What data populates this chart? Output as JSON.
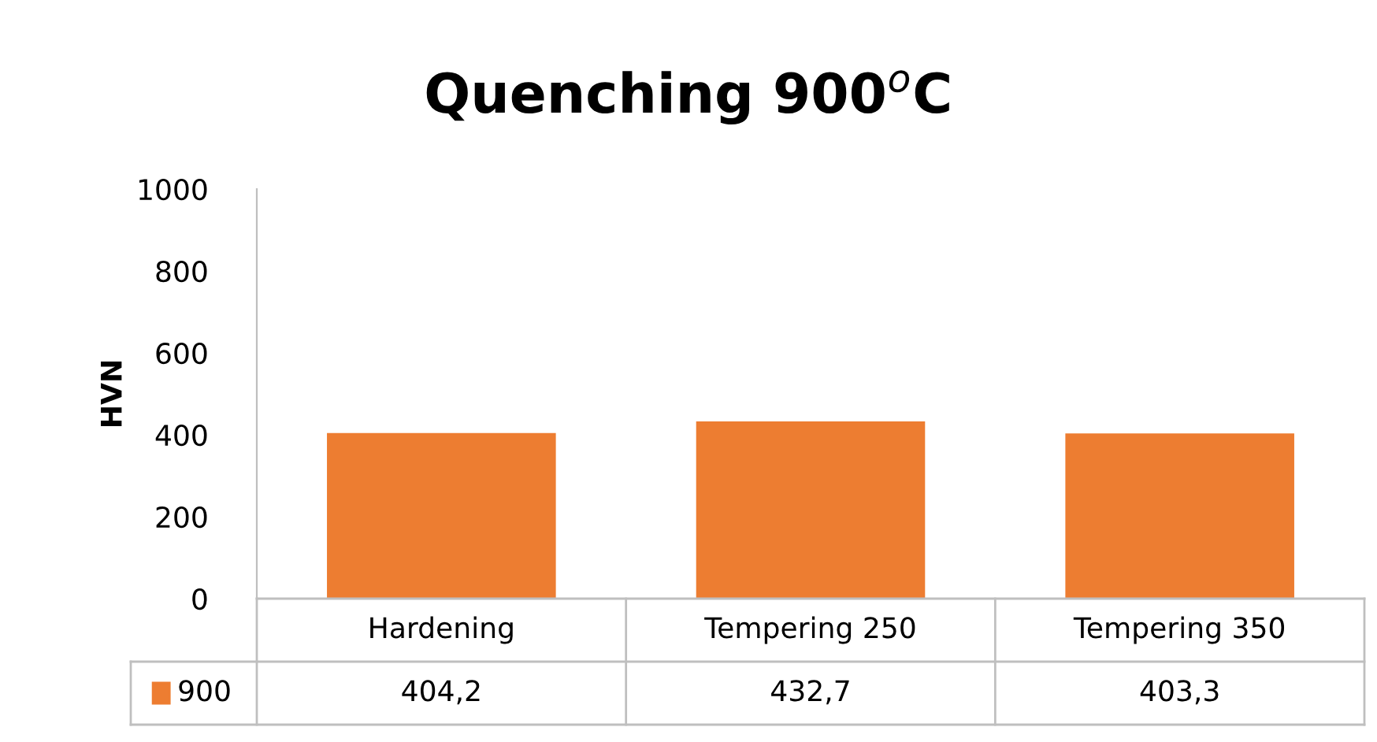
{
  "chart_data": {
    "type": "bar",
    "title": "Quenching 900$^{o}$C",
    "ylabel": "HVN",
    "categories": [
      "Hardening",
      "Tempering 250",
      "Tempering 350"
    ],
    "series": [
      {
        "name": "900",
        "color": "#ed7d31",
        "values": [
          404.2,
          432.7,
          403.3
        ],
        "value_labels": [
          "404,2",
          "432,7",
          "403,3"
        ]
      }
    ],
    "ylim": [
      0,
      1000
    ],
    "yticks": [
      0,
      200,
      400,
      600,
      800,
      1000
    ],
    "grid": false
  }
}
